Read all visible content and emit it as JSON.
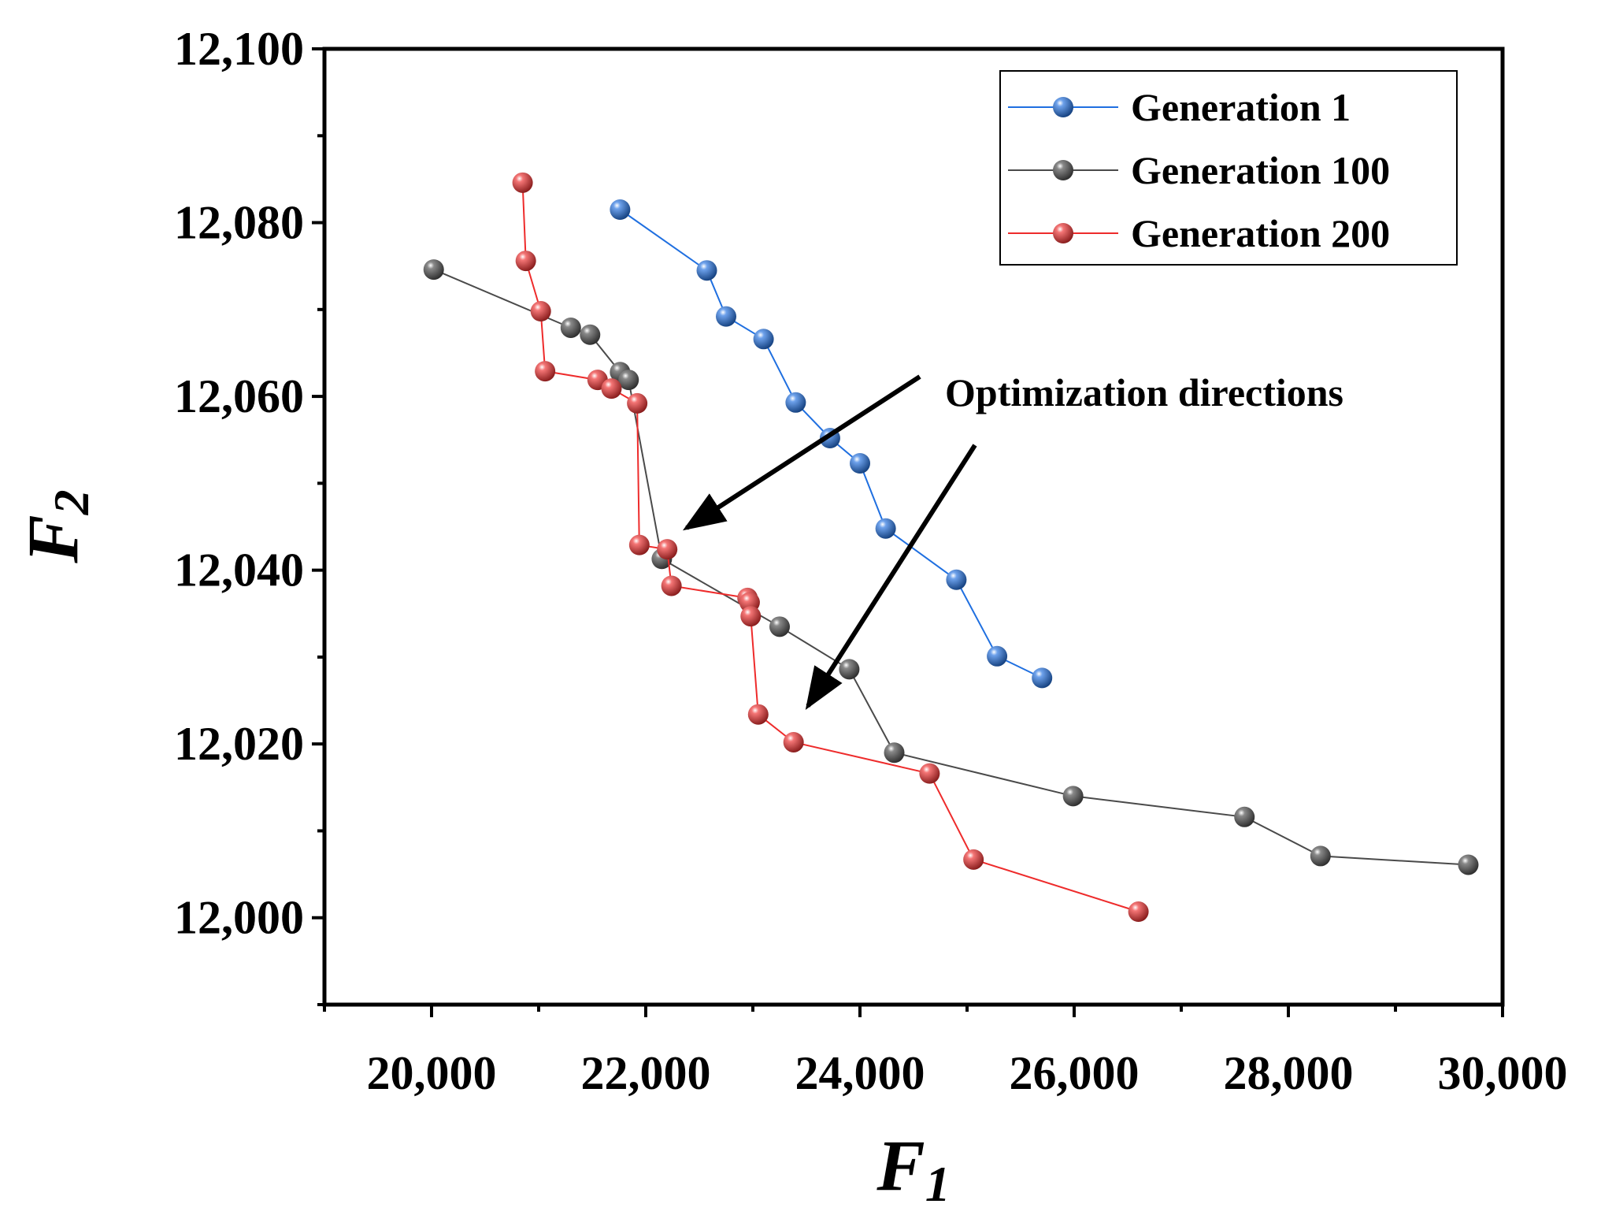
{
  "chart_data": {
    "type": "line",
    "title": "",
    "xlabel": "F",
    "xlabel_sub": "1",
    "ylabel": "F",
    "ylabel_sub": "2",
    "xlim": [
      19000,
      30000
    ],
    "ylim": [
      11990,
      12100
    ],
    "x_ticks": [
      20000,
      22000,
      24000,
      26000,
      28000,
      30000
    ],
    "x_tick_labels": [
      "20,000",
      "22,000",
      "24,000",
      "26,000",
      "28,000",
      "30,000"
    ],
    "y_ticks": [
      12000,
      12020,
      12040,
      12060,
      12080,
      12100
    ],
    "y_tick_labels": [
      "12,000",
      "12,020",
      "12,040",
      "12,060",
      "12,080",
      "12,100"
    ],
    "legend_position": "top-right",
    "series": [
      {
        "name": "Generation 1",
        "color": "#1f6fe0",
        "x": [
          21760,
          22570,
          22750,
          23100,
          23400,
          23720,
          24000,
          24240,
          24900,
          25280,
          25700
        ],
        "y": [
          12081.5,
          12074.5,
          12069.2,
          12066.6,
          12059.3,
          12055.2,
          12052.3,
          12044.8,
          12038.9,
          12030.1,
          12027.6
        ]
      },
      {
        "name": "Generation 100",
        "color": "#4a4a4a",
        "x": [
          20020,
          21300,
          21480,
          21760,
          21840,
          22150,
          23250,
          23900,
          24320,
          25990,
          27590,
          28300,
          29680
        ],
        "y": [
          12074.6,
          12067.9,
          12067.1,
          12062.8,
          12061.9,
          12041.3,
          12033.5,
          12028.6,
          12019.0,
          12014.0,
          12011.6,
          12007.1,
          12006.1
        ]
      },
      {
        "name": "Generation 200",
        "color": "#ee2b2b",
        "x": [
          20850,
          20880,
          21020,
          21060,
          21550,
          21680,
          21920,
          21940,
          22200,
          22240,
          22950,
          22970,
          22980,
          23050,
          23380,
          24650,
          25060,
          26600
        ],
        "y": [
          12084.6,
          12075.6,
          12069.8,
          12062.9,
          12061.9,
          12060.9,
          12059.2,
          12042.9,
          12042.4,
          12038.2,
          12036.8,
          12036.3,
          12034.7,
          12023.4,
          12020.2,
          12016.6,
          12006.7,
          12000.7
        ]
      }
    ],
    "annotations": [
      {
        "text": "Optimization directions"
      }
    ]
  }
}
